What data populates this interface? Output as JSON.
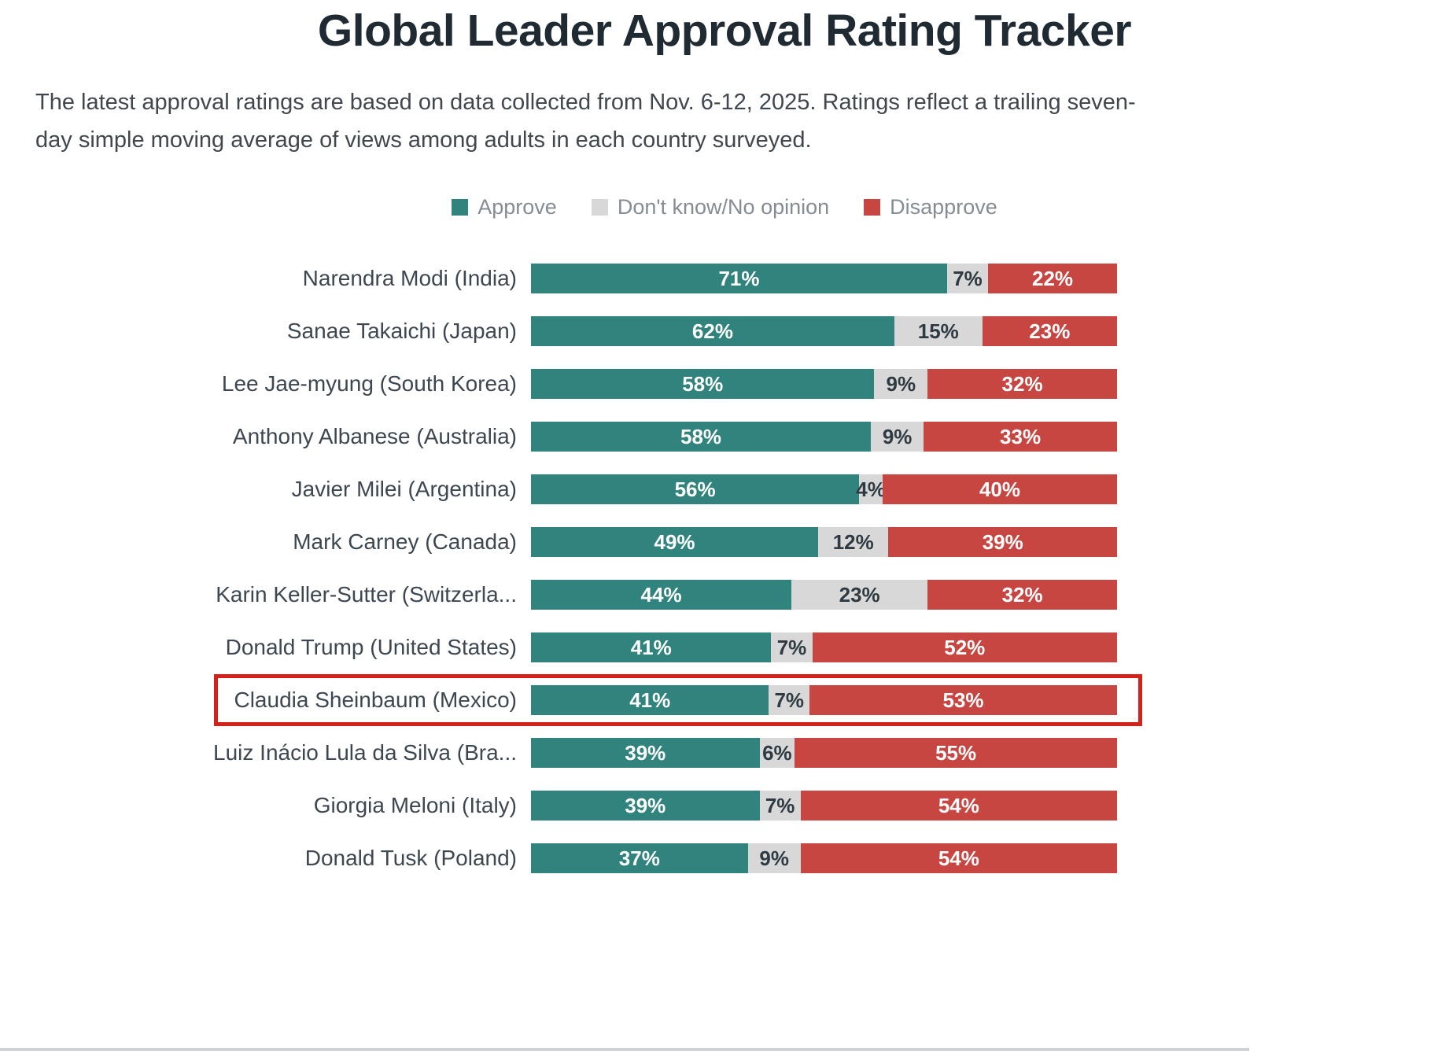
{
  "page": {
    "title": "Global Leader Approval Rating Tracker",
    "subtitle": "The latest approval ratings are based on data collected from Nov. 6-12, 2025. Ratings reflect a trailing seven-day simple moving average of views among adults in each country surveyed."
  },
  "colors": {
    "approve": "#31837d",
    "dont_know": "#d8d8d8",
    "disapprove": "#c84642",
    "highlight_border": "#d6201a",
    "title_text": "#1f2a33",
    "body_text": "#40474e",
    "legend_text": "#848d94"
  },
  "chart_data": {
    "type": "bar",
    "orientation": "horizontal",
    "stacked": true,
    "value_suffix": "%",
    "legend_position": "top-center",
    "categories": [
      "Narendra Modi (India)",
      "Sanae Takaichi (Japan)",
      "Lee Jae-myung (South Korea)",
      "Anthony Albanese (Australia)",
      "Javier Milei (Argentina)",
      "Mark Carney (Canada)",
      "Karin Keller-Sutter (Switzerla...",
      "Donald Trump (United States)",
      "Claudia Sheinbaum (Mexico)",
      "Luiz Inácio Lula da Silva (Bra...",
      "Giorgia Meloni (Italy)",
      "Donald Tusk (Poland)"
    ],
    "series": [
      {
        "key": "approve",
        "name": "Approve",
        "color": "#31837d",
        "text_color": "#ffffff",
        "values": [
          71,
          62,
          58,
          58,
          56,
          49,
          44,
          41,
          41,
          39,
          39,
          37
        ]
      },
      {
        "key": "dont_know",
        "name": "Don't know/No opinion",
        "color": "#d8d8d8",
        "text_color": "#2f3a42",
        "values": [
          7,
          15,
          9,
          9,
          4,
          12,
          23,
          7,
          7,
          6,
          7,
          9
        ]
      },
      {
        "key": "disapprove",
        "name": "Disapprove",
        "color": "#c84642",
        "text_color": "#ffffff",
        "values": [
          22,
          23,
          32,
          33,
          40,
          39,
          32,
          52,
          53,
          55,
          54,
          54
        ]
      }
    ],
    "highlighted_category": "Claudia Sheinbaum (Mexico)",
    "highlight_index": 8
  }
}
